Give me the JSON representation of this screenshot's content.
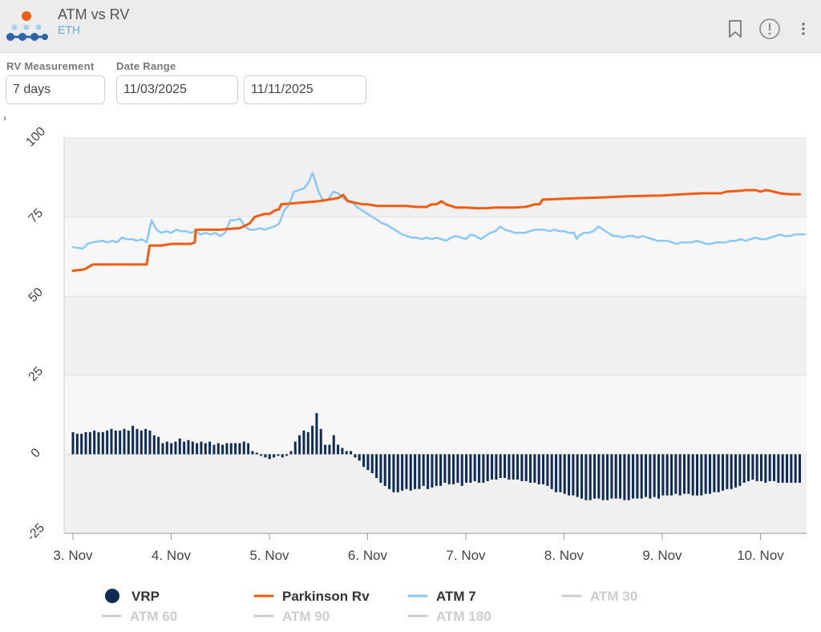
{
  "header": {
    "title": "ATM vs RV",
    "subtitle": "ETH",
    "icons": [
      "bookmark-icon",
      "info-icon",
      "more-vertical-icon"
    ]
  },
  "controls": {
    "rv_label": "RV Measurement",
    "rv_value": "7 days",
    "date_label": "Date Range",
    "date_start": "11/03/2025",
    "date_end": "11/11/2025"
  },
  "chart_data": {
    "type": "line",
    "title": "",
    "xlabel": "",
    "ylabel": "",
    "ylim": [
      -25,
      100
    ],
    "yticks": [
      "100",
      "75",
      "50",
      "25",
      "0",
      "-25"
    ],
    "x_ticks": [
      "3. Nov",
      "4. Nov",
      "5. Nov",
      "6. Nov",
      "7. Nov",
      "8. Nov",
      "9. Nov",
      "10. Nov"
    ],
    "x_range_days": [
      -0.1,
      7.45
    ],
    "grid": true,
    "legend_placement": "bottom",
    "colors": {
      "vrp": "#0d2b55",
      "parkinson": "#f25c12",
      "atm7": "#8ac8f5",
      "inactive": "#cccccc"
    },
    "legend": [
      {
        "name": "VRP",
        "marker": "circle",
        "active": true
      },
      {
        "name": "Parkinson Rv",
        "marker": "line",
        "active": true
      },
      {
        "name": "ATM 7",
        "marker": "line",
        "active": true
      },
      {
        "name": "ATM 30",
        "marker": "line",
        "active": false
      },
      {
        "name": "ATM 60",
        "marker": "line",
        "active": false
      },
      {
        "name": "ATM 90",
        "marker": "line",
        "active": false
      },
      {
        "name": "ATM 180",
        "marker": "line",
        "active": false
      }
    ],
    "series": [
      {
        "name": "Parkinson Rv",
        "points": [
          [
            0,
            58
          ],
          [
            0.12,
            58.5
          ],
          [
            0.2,
            60
          ],
          [
            0.4,
            60
          ],
          [
            0.55,
            60
          ],
          [
            0.75,
            60
          ],
          [
            0.78,
            66
          ],
          [
            0.9,
            66
          ],
          [
            1.0,
            66.5
          ],
          [
            1.2,
            66.5
          ],
          [
            1.24,
            67
          ],
          [
            1.25,
            71
          ],
          [
            1.5,
            71
          ],
          [
            1.7,
            71.5
          ],
          [
            1.8,
            73
          ],
          [
            1.85,
            75
          ],
          [
            1.95,
            76
          ],
          [
            2.0,
            76
          ],
          [
            2.05,
            77
          ],
          [
            2.1,
            77.5
          ],
          [
            2.12,
            79
          ],
          [
            2.3,
            79.5
          ],
          [
            2.5,
            80
          ],
          [
            2.6,
            80.5
          ],
          [
            2.7,
            81
          ],
          [
            2.75,
            82
          ],
          [
            2.8,
            80
          ],
          [
            2.95,
            79
          ],
          [
            3.0,
            79
          ],
          [
            3.1,
            78.5
          ],
          [
            3.2,
            78.5
          ],
          [
            3.3,
            78.5
          ],
          [
            3.4,
            78.5
          ],
          [
            3.5,
            78.2
          ],
          [
            3.6,
            78.2
          ],
          [
            3.65,
            79
          ],
          [
            3.7,
            79
          ],
          [
            3.75,
            80
          ],
          [
            3.8,
            79
          ],
          [
            3.9,
            78
          ],
          [
            4.0,
            78
          ],
          [
            4.1,
            77.8
          ],
          [
            4.2,
            77.8
          ],
          [
            4.3,
            78
          ],
          [
            4.4,
            78
          ],
          [
            4.5,
            78
          ],
          [
            4.6,
            78.2
          ],
          [
            4.65,
            78.5
          ],
          [
            4.7,
            79
          ],
          [
            4.75,
            79
          ],
          [
            4.78,
            80.5
          ],
          [
            5.0,
            80.8
          ],
          [
            5.2,
            81
          ],
          [
            5.4,
            81.2
          ],
          [
            5.6,
            81.5
          ],
          [
            5.8,
            81.7
          ],
          [
            6.0,
            81.8
          ],
          [
            6.1,
            82
          ],
          [
            6.2,
            82.2
          ],
          [
            6.4,
            82.5
          ],
          [
            6.5,
            82.5
          ],
          [
            6.6,
            82.5
          ],
          [
            6.65,
            83
          ],
          [
            6.8,
            83.3
          ],
          [
            6.85,
            83.5
          ],
          [
            6.95,
            83.5
          ],
          [
            7.0,
            83
          ],
          [
            7.05,
            83.5
          ],
          [
            7.1,
            83.3
          ],
          [
            7.2,
            82.5
          ],
          [
            7.3,
            82.2
          ],
          [
            7.4,
            82.2
          ]
        ]
      },
      {
        "name": "ATM 7",
        "points": [
          [
            0,
            65.5
          ],
          [
            0.1,
            65
          ],
          [
            0.15,
            66.5
          ],
          [
            0.2,
            67
          ],
          [
            0.3,
            67.5
          ],
          [
            0.35,
            67
          ],
          [
            0.4,
            67.5
          ],
          [
            0.45,
            67
          ],
          [
            0.5,
            68.5
          ],
          [
            0.55,
            68
          ],
          [
            0.6,
            68
          ],
          [
            0.65,
            67.5
          ],
          [
            0.7,
            68
          ],
          [
            0.75,
            67
          ],
          [
            0.8,
            74
          ],
          [
            0.85,
            71
          ],
          [
            0.9,
            70
          ],
          [
            0.95,
            70.5
          ],
          [
            1.0,
            70
          ],
          [
            1.05,
            71
          ],
          [
            1.1,
            70.5
          ],
          [
            1.15,
            70.5
          ],
          [
            1.2,
            70
          ],
          [
            1.25,
            70.5
          ],
          [
            1.3,
            69.5
          ],
          [
            1.35,
            70
          ],
          [
            1.4,
            69.5
          ],
          [
            1.45,
            70
          ],
          [
            1.5,
            69
          ],
          [
            1.55,
            70
          ],
          [
            1.6,
            74
          ],
          [
            1.65,
            74
          ],
          [
            1.7,
            74.5
          ],
          [
            1.75,
            72
          ],
          [
            1.8,
            71
          ],
          [
            1.85,
            71
          ],
          [
            1.9,
            71.5
          ],
          [
            1.95,
            71
          ],
          [
            2.0,
            71.5
          ],
          [
            2.05,
            72
          ],
          [
            2.1,
            73
          ],
          [
            2.15,
            77
          ],
          [
            2.2,
            79
          ],
          [
            2.25,
            83
          ],
          [
            2.3,
            83.5
          ],
          [
            2.35,
            84
          ],
          [
            2.4,
            86
          ],
          [
            2.44,
            89
          ],
          [
            2.47,
            86
          ],
          [
            2.5,
            83
          ],
          [
            2.55,
            80
          ],
          [
            2.6,
            80.5
          ],
          [
            2.65,
            83
          ],
          [
            2.7,
            82.5
          ],
          [
            2.75,
            81
          ],
          [
            2.8,
            80
          ],
          [
            2.85,
            79.5
          ],
          [
            2.9,
            78
          ],
          [
            2.95,
            77
          ],
          [
            3.0,
            76
          ],
          [
            3.05,
            75
          ],
          [
            3.1,
            74
          ],
          [
            3.15,
            73
          ],
          [
            3.2,
            72.5
          ],
          [
            3.25,
            71.5
          ],
          [
            3.3,
            70.5
          ],
          [
            3.35,
            69.5
          ],
          [
            3.4,
            69
          ],
          [
            3.45,
            68.5
          ],
          [
            3.5,
            68.5
          ],
          [
            3.55,
            68
          ],
          [
            3.6,
            68.5
          ],
          [
            3.65,
            68
          ],
          [
            3.7,
            68.5
          ],
          [
            3.75,
            68
          ],
          [
            3.8,
            67.5
          ],
          [
            3.85,
            68.5
          ],
          [
            3.9,
            69
          ],
          [
            3.95,
            68.5
          ],
          [
            4.0,
            68
          ],
          [
            4.05,
            69.5
          ],
          [
            4.1,
            69
          ],
          [
            4.15,
            68
          ],
          [
            4.2,
            69
          ],
          [
            4.25,
            70
          ],
          [
            4.3,
            70.5
          ],
          [
            4.35,
            72
          ],
          [
            4.4,
            71
          ],
          [
            4.45,
            70.5
          ],
          [
            4.5,
            70
          ],
          [
            4.55,
            70
          ],
          [
            4.6,
            70
          ],
          [
            4.65,
            70.5
          ],
          [
            4.7,
            71
          ],
          [
            4.75,
            71
          ],
          [
            4.8,
            71
          ],
          [
            4.85,
            70.5
          ],
          [
            4.9,
            71
          ],
          [
            4.95,
            70.5
          ],
          [
            5.0,
            70.5
          ],
          [
            5.05,
            70
          ],
          [
            5.1,
            70
          ],
          [
            5.13,
            68
          ],
          [
            5.15,
            69
          ],
          [
            5.2,
            70
          ],
          [
            5.25,
            70
          ],
          [
            5.3,
            70.5
          ],
          [
            5.35,
            72
          ],
          [
            5.4,
            71
          ],
          [
            5.45,
            70
          ],
          [
            5.5,
            69
          ],
          [
            5.55,
            69
          ],
          [
            5.6,
            68.5
          ],
          [
            5.65,
            69
          ],
          [
            5.7,
            69
          ],
          [
            5.75,
            68.5
          ],
          [
            5.8,
            69
          ],
          [
            5.85,
            68.5
          ],
          [
            5.9,
            68
          ],
          [
            5.95,
            67.5
          ],
          [
            6.0,
            67.5
          ],
          [
            6.05,
            67.5
          ],
          [
            6.1,
            67
          ],
          [
            6.15,
            66.5
          ],
          [
            6.2,
            67
          ],
          [
            6.25,
            67
          ],
          [
            6.3,
            67
          ],
          [
            6.35,
            67.5
          ],
          [
            6.4,
            67
          ],
          [
            6.45,
            66.5
          ],
          [
            6.5,
            66.5
          ],
          [
            6.55,
            67
          ],
          [
            6.6,
            67
          ],
          [
            6.65,
            67
          ],
          [
            6.7,
            67.5
          ],
          [
            6.75,
            67.5
          ],
          [
            6.8,
            68
          ],
          [
            6.85,
            67.5
          ],
          [
            6.9,
            68
          ],
          [
            6.95,
            68.5
          ],
          [
            7.0,
            68
          ],
          [
            7.05,
            68
          ],
          [
            7.1,
            68.5
          ],
          [
            7.15,
            69
          ],
          [
            7.2,
            69.5
          ],
          [
            7.25,
            69
          ],
          [
            7.3,
            69
          ],
          [
            7.35,
            69.5
          ],
          [
            7.4,
            69.5
          ],
          [
            7.45,
            69.5
          ]
        ]
      },
      {
        "name": "VRP",
        "type": "column",
        "values": [
          7,
          6.5,
          6.5,
          7,
          7,
          7.5,
          7,
          7,
          7.5,
          8,
          7.5,
          7.5,
          8,
          7.5,
          9,
          8,
          7.5,
          8,
          7.5,
          6,
          5.5,
          3.5,
          4,
          3.5,
          4,
          5,
          4,
          4.5,
          4,
          3.5,
          4,
          3.5,
          4,
          3,
          3.5,
          3,
          3.5,
          3.5,
          3.5,
          3.5,
          4,
          3.5,
          1,
          0.5,
          -0.5,
          -1,
          -1.5,
          -1,
          -0.5,
          -1,
          -0.5,
          1,
          4,
          6,
          7.5,
          7,
          9,
          13,
          8,
          3,
          3,
          6,
          3,
          2,
          1,
          1,
          -1,
          -2,
          -4,
          -5,
          -6,
          -7.5,
          -9,
          -10,
          -11,
          -12,
          -12,
          -11.5,
          -11,
          -11.5,
          -11,
          -11,
          -10,
          -11,
          -10.5,
          -10,
          -10,
          -9,
          -9.5,
          -9.5,
          -9,
          -10,
          -9,
          -9,
          -8.5,
          -9,
          -9,
          -8.5,
          -8,
          -8,
          -7.5,
          -7.5,
          -8,
          -8,
          -8,
          -8.5,
          -8.5,
          -9,
          -9,
          -9.5,
          -9.5,
          -10,
          -11,
          -12,
          -12,
          -12.5,
          -13,
          -13,
          -13.5,
          -14,
          -14.5,
          -14.5,
          -14,
          -14,
          -14.5,
          -14.5,
          -14,
          -14,
          -14,
          -14.5,
          -14.5,
          -14,
          -14,
          -14,
          -13.5,
          -14,
          -13.5,
          -14,
          -13,
          -13,
          -13,
          -12.5,
          -13,
          -12.5,
          -12.5,
          -13,
          -13,
          -13,
          -12.5,
          -12.5,
          -12,
          -12,
          -11.5,
          -11,
          -11,
          -10.5,
          -10,
          -9,
          -8.5,
          -8,
          -8.5,
          -8.5,
          -9,
          -8.5,
          -8.5,
          -9,
          -9,
          -9,
          -9,
          -9,
          -9
        ]
      }
    ]
  }
}
